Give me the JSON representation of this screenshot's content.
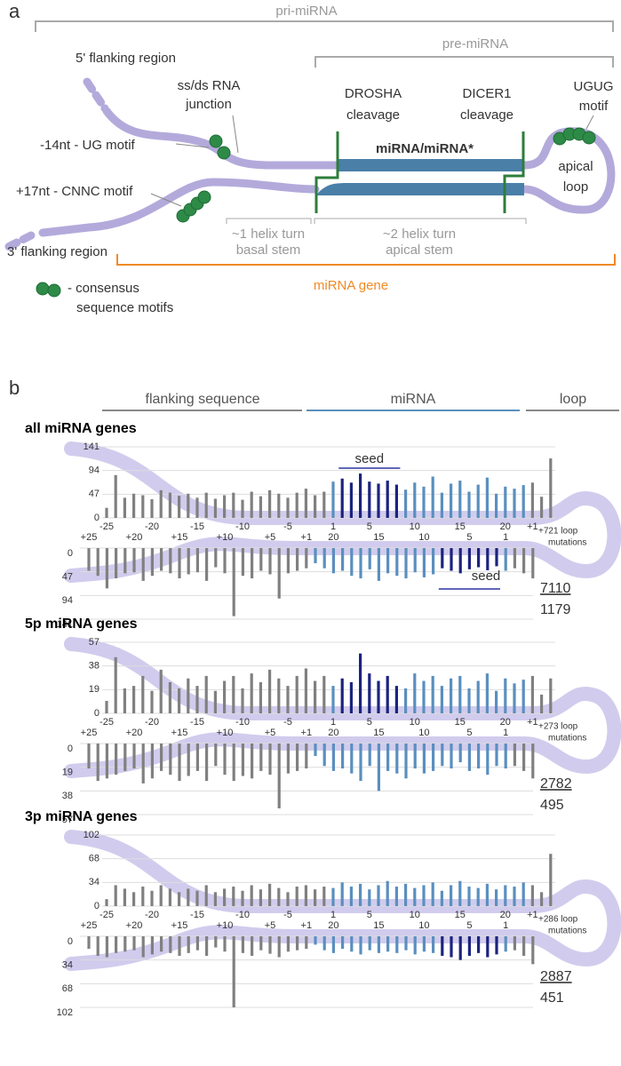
{
  "panel_a": {
    "label": "a",
    "pri_mirna": "pri-miRNA",
    "pre_mirna": "pre-miRNA",
    "flank_5": "5' flanking region",
    "junction": [
      "ss/ds RNA",
      "junction"
    ],
    "drosha": [
      "DROSHA",
      "cleavage"
    ],
    "dicer": [
      "DICER1",
      "cleavage"
    ],
    "ugug": [
      "UGUG",
      "motif"
    ],
    "ug_motif": "-14nt - UG motif",
    "duplex": "miRNA/miRNA*",
    "loop": [
      "apical",
      "loop"
    ],
    "cnnc": "+17nt - CNNC motif",
    "flank_3": "3' flanking region",
    "basal": [
      "~1 helix turn",
      "basal stem"
    ],
    "apical": [
      "~2 helix turn",
      "apical stem"
    ],
    "gene": "miRNA gene",
    "legend": [
      "- consensus",
      "sequence motifs"
    ]
  },
  "panel_b": {
    "label": "b",
    "sections": [
      "flanking sequence",
      "miRNA",
      "loop"
    ]
  },
  "chart_data": [
    {
      "type": "bar",
      "title": "all miRNA genes",
      "ylim": [
        0,
        141
      ],
      "yticks": [
        0,
        47,
        94,
        141
      ],
      "loop_note": [
        "+721 loop",
        "mutations"
      ],
      "loop_counts": [
        "7110",
        "1179"
      ],
      "top": {
        "categories": [
          "-25",
          null,
          null,
          null,
          null,
          "-20",
          null,
          null,
          null,
          null,
          "-15",
          null,
          null,
          null,
          null,
          "-10",
          null,
          null,
          null,
          null,
          "-5",
          null,
          null,
          null,
          null,
          "1",
          null,
          null,
          null,
          "5",
          null,
          null,
          null,
          null,
          "10",
          null,
          null,
          null,
          null,
          "15",
          null,
          null,
          null,
          null,
          "20",
          null,
          null,
          "+1",
          null,
          null
        ],
        "groups": [
          {
            "color": "#808080",
            "values": [
              20,
              85,
              40,
              48,
              45,
              37,
              55,
              50,
              44,
              48,
              40,
              50,
              38,
              45,
              50,
              36,
              52,
              43,
              55,
              48,
              40,
              50,
              58,
              45,
              52
            ]
          },
          {
            "color": "#5a8fbf",
            "values": [
              72
            ]
          },
          {
            "color": "#1c237e",
            "values": [
              78,
              70,
              88,
              72,
              68,
              74,
              66
            ],
            "label": "seed"
          },
          {
            "color": "#5a8fbf",
            "values": [
              56,
              70,
              62,
              82,
              50,
              68,
              74,
              52,
              66,
              80,
              48,
              62,
              58,
              65
            ]
          },
          {
            "color": "#808080",
            "values": [
              70,
              42,
              118
            ]
          }
        ]
      },
      "bottom": {
        "categories": [
          "+25",
          null,
          null,
          null,
          null,
          "+20",
          null,
          null,
          null,
          null,
          "+15",
          null,
          null,
          null,
          null,
          "+10",
          null,
          null,
          null,
          null,
          "+5",
          null,
          null,
          null,
          "+1",
          null,
          null,
          "20",
          null,
          null,
          null,
          null,
          "15",
          null,
          null,
          null,
          null,
          "10",
          null,
          null,
          null,
          null,
          "5",
          null,
          null,
          null,
          "1",
          null,
          null,
          null
        ],
        "groups": [
          {
            "color": "#808080",
            "values": [
              45,
              55,
              80,
              60,
              50,
              48,
              65,
              55,
              45,
              50,
              60,
              52,
              48,
              65,
              38,
              50,
              135,
              55,
              60,
              45,
              52,
              100,
              50,
              45,
              40
            ]
          },
          {
            "color": "#5a8fbf",
            "values": [
              30,
              40,
              50,
              45,
              55,
              60,
              42,
              65,
              50,
              55,
              60,
              48,
              58,
              52
            ]
          },
          {
            "color": "#1c237e",
            "values": [
              40,
              45,
              50,
              42,
              38,
              44,
              36
            ],
            "label": "seed"
          },
          {
            "color": "#5a8fbf",
            "values": [
              45
            ]
          },
          {
            "color": "#808080",
            "values": [
              40,
              50,
              60
            ]
          }
        ]
      }
    },
    {
      "type": "bar",
      "title": "5p miRNA genes",
      "ylim": [
        0,
        57
      ],
      "yticks": [
        0,
        19,
        38,
        57
      ],
      "loop_note": [
        "+273 loop",
        "mutations"
      ],
      "loop_counts": [
        "2782",
        "495"
      ],
      "top": {
        "categories": [
          "-25",
          null,
          null,
          null,
          null,
          "-20",
          null,
          null,
          null,
          null,
          "-15",
          null,
          null,
          null,
          null,
          "-10",
          null,
          null,
          null,
          null,
          "-5",
          null,
          null,
          null,
          null,
          "1",
          null,
          null,
          null,
          "5",
          null,
          null,
          null,
          null,
          "10",
          null,
          null,
          null,
          null,
          "15",
          null,
          null,
          null,
          null,
          "20",
          null,
          null,
          "+1",
          null,
          null
        ],
        "groups": [
          {
            "color": "#808080",
            "values": [
              10,
              45,
              20,
              22,
              30,
              18,
              35,
              25,
              20,
              28,
              22,
              30,
              18,
              26,
              30,
              20,
              32,
              25,
              35,
              28,
              22,
              30,
              36,
              26,
              30
            ]
          },
          {
            "color": "#5a8fbf",
            "values": [
              22
            ]
          },
          {
            "color": "#1c237e",
            "values": [
              28,
              25,
              48,
              32,
              26,
              30,
              22
            ]
          },
          {
            "color": "#5a8fbf",
            "values": [
              20,
              32,
              26,
              30,
              22,
              28,
              30,
              20,
              26,
              32,
              18,
              28,
              24,
              27
            ]
          },
          {
            "color": "#808080",
            "values": [
              30,
              15,
              28
            ]
          }
        ]
      },
      "bottom": {
        "categories": [
          "+25",
          null,
          null,
          null,
          null,
          "+20",
          null,
          null,
          null,
          null,
          "+15",
          null,
          null,
          null,
          null,
          "+10",
          null,
          null,
          null,
          null,
          "+5",
          null,
          null,
          null,
          "+1",
          null,
          null,
          "20",
          null,
          null,
          null,
          null,
          "15",
          null,
          null,
          null,
          null,
          "10",
          null,
          null,
          null,
          null,
          "5",
          null,
          null,
          null,
          "1",
          null,
          null,
          null
        ],
        "groups": [
          {
            "color": "#808080",
            "values": [
              20,
              30,
              28,
              25,
              22,
              20,
              32,
              28,
              22,
              25,
              30,
              26,
              22,
              30,
              18,
              25,
              30,
              26,
              28,
              22,
              25,
              52,
              24,
              22,
              20
            ]
          },
          {
            "color": "#5a8fbf",
            "values": [
              10,
              18,
              22,
              20,
              24,
              30,
              18,
              38,
              22,
              24,
              28,
              20,
              24,
              22,
              18,
              20,
              15,
              22,
              20,
              25,
              18,
              20
            ]
          },
          {
            "color": "#808080",
            "values": [
              18,
              22,
              28
            ]
          }
        ]
      }
    },
    {
      "type": "bar",
      "title": "3p miRNA genes",
      "ylim": [
        0,
        102
      ],
      "yticks": [
        0,
        34,
        68,
        102
      ],
      "loop_note": [
        "+286 loop",
        "mutations"
      ],
      "loop_counts": [
        "2887",
        "451"
      ],
      "top": {
        "categories": [
          "-25",
          null,
          null,
          null,
          null,
          "-20",
          null,
          null,
          null,
          null,
          "-15",
          null,
          null,
          null,
          null,
          "-10",
          null,
          null,
          null,
          null,
          "-5",
          null,
          null,
          null,
          null,
          "1",
          null,
          null,
          null,
          "5",
          null,
          null,
          null,
          null,
          "10",
          null,
          null,
          null,
          null,
          "15",
          null,
          null,
          null,
          null,
          "20",
          null,
          null,
          "+1",
          null,
          null
        ],
        "groups": [
          {
            "color": "#808080",
            "values": [
              10,
              30,
              25,
              20,
              28,
              22,
              30,
              25,
              20,
              25,
              22,
              30,
              20,
              25,
              28,
              22,
              30,
              24,
              32,
              26,
              20,
              28,
              30,
              24,
              28
            ]
          },
          {
            "color": "#5a8fbf",
            "values": [
              26,
              34,
              28,
              32,
              24,
              30,
              36,
              28,
              32,
              26,
              30,
              34,
              22,
              30,
              36,
              28,
              26,
              32,
              24,
              30,
              28,
              34
            ]
          },
          {
            "color": "#808080",
            "values": [
              30,
              20,
              75
            ]
          }
        ]
      },
      "bottom": {
        "categories": [
          "+25",
          null,
          null,
          null,
          null,
          "+20",
          null,
          null,
          null,
          null,
          "+15",
          null,
          null,
          null,
          null,
          "+10",
          null,
          null,
          null,
          null,
          "+5",
          null,
          null,
          null,
          "+1",
          null,
          null,
          "20",
          null,
          null,
          null,
          null,
          "15",
          null,
          null,
          null,
          null,
          "10",
          null,
          null,
          null,
          null,
          "5",
          null,
          null,
          null,
          "1",
          null,
          null,
          null
        ],
        "groups": [
          {
            "color": "#808080",
            "values": [
              18,
              28,
              30,
              24,
              22,
              20,
              30,
              26,
              22,
              24,
              28,
              24,
              20,
              28,
              16,
              22,
              102,
              24,
              28,
              20,
              25,
              30,
              22,
              20,
              18
            ]
          },
          {
            "color": "#5a8fbf",
            "values": [
              12,
              20,
              24,
              18,
              22,
              26,
              20,
              24,
              22,
              24,
              20,
              26,
              22,
              24
            ]
          },
          {
            "color": "#1c237e",
            "values": [
              28,
              30,
              34,
              28,
              24,
              30,
              26
            ]
          },
          {
            "color": "#5a8fbf",
            "values": [
              22
            ]
          },
          {
            "color": "#808080",
            "values": [
              20,
              28,
              40
            ]
          }
        ]
      }
    }
  ]
}
